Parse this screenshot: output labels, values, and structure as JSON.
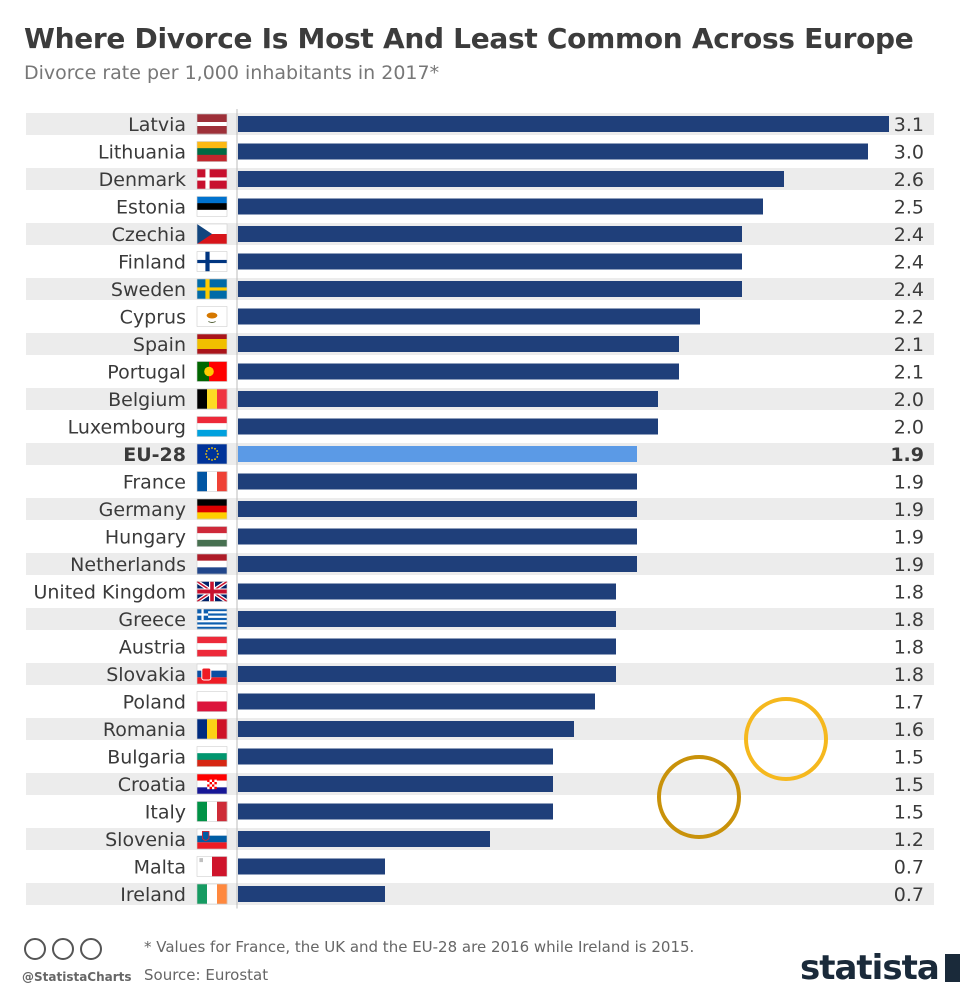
{
  "chart_data": {
    "type": "bar",
    "orientation": "horizontal",
    "title": "Where Divorce Is Most And Least Common Across Europe",
    "subtitle": "Divorce rate per 1,000 inhabitants in 2017*",
    "categories": [
      "Latvia",
      "Lithuania",
      "Denmark",
      "Estonia",
      "Czechia",
      "Finland",
      "Sweden",
      "Cyprus",
      "Spain",
      "Portugal",
      "Belgium",
      "Luxembourg",
      "EU-28",
      "France",
      "Germany",
      "Hungary",
      "Netherlands",
      "United Kingdom",
      "Greece",
      "Austria",
      "Slovakia",
      "Poland",
      "Romania",
      "Bulgaria",
      "Croatia",
      "Italy",
      "Slovenia",
      "Malta",
      "Ireland"
    ],
    "values": [
      3.1,
      3.0,
      2.6,
      2.5,
      2.4,
      2.4,
      2.4,
      2.2,
      2.1,
      2.1,
      2.0,
      2.0,
      1.9,
      1.9,
      1.9,
      1.9,
      1.9,
      1.8,
      1.8,
      1.8,
      1.8,
      1.7,
      1.6,
      1.5,
      1.5,
      1.5,
      1.2,
      0.7,
      0.7
    ],
    "value_labels": [
      "3.1",
      "3.0",
      "2.6",
      "2.5",
      "2.4",
      "2.4",
      "2.4",
      "2.2",
      "2.1",
      "2.1",
      "2.0",
      "2.0",
      "1.9",
      "1.9",
      "1.9",
      "1.9",
      "1.9",
      "1.8",
      "1.8",
      "1.8",
      "1.8",
      "1.7",
      "1.6",
      "1.5",
      "1.5",
      "1.5",
      "1.2",
      "0.7",
      "0.7"
    ],
    "highlight_category": "EU-28",
    "xlim": [
      0,
      3.1
    ],
    "bar_color": "#1f3f7a",
    "highlight_color": "#5b9ae6",
    "stripe_color": "#ececec",
    "grid": false,
    "legend": "none"
  },
  "flags": {
    "Latvia": {
      "type": "h",
      "colors": [
        "#9e3039",
        "#9e3039",
        "#ffffff",
        "#9e3039",
        "#9e3039"
      ]
    },
    "Lithuania": {
      "type": "h",
      "colors": [
        "#fdb913",
        "#006a44",
        "#c1272d"
      ]
    },
    "Denmark": {
      "type": "nordic",
      "bg": "#c8102e",
      "cross": "#ffffff"
    },
    "Estonia": {
      "type": "h",
      "colors": [
        "#0072ce",
        "#000000",
        "#ffffff"
      ]
    },
    "Czechia": {
      "type": "czech"
    },
    "Finland": {
      "type": "nordic",
      "bg": "#ffffff",
      "cross": "#003580"
    },
    "Sweden": {
      "type": "nordic",
      "bg": "#006aa7",
      "cross": "#fecc00"
    },
    "Cyprus": {
      "type": "cyprus"
    },
    "Spain": {
      "type": "h",
      "colors": [
        "#aa151b",
        "#f1bf00",
        "#f1bf00",
        "#aa151b"
      ]
    },
    "Portugal": {
      "type": "portugal"
    },
    "Belgium": {
      "type": "v",
      "colors": [
        "#000000",
        "#fdda24",
        "#ef3340"
      ]
    },
    "Luxembourg": {
      "type": "h",
      "colors": [
        "#ed2939",
        "#ffffff",
        "#00a1de"
      ]
    },
    "EU-28": {
      "type": "eu"
    },
    "France": {
      "type": "v",
      "colors": [
        "#0055a4",
        "#ffffff",
        "#ef4135"
      ]
    },
    "Germany": {
      "type": "h",
      "colors": [
        "#000000",
        "#dd0000",
        "#ffce00"
      ]
    },
    "Hungary": {
      "type": "h",
      "colors": [
        "#ce2939",
        "#ffffff",
        "#477050"
      ]
    },
    "Netherlands": {
      "type": "h",
      "colors": [
        "#ae1c28",
        "#ffffff",
        "#21468b"
      ]
    },
    "United Kingdom": {
      "type": "uk"
    },
    "Greece": {
      "type": "greece"
    },
    "Austria": {
      "type": "h",
      "colors": [
        "#ed2939",
        "#ffffff",
        "#ed2939"
      ]
    },
    "Slovakia": {
      "type": "slovakia"
    },
    "Poland": {
      "type": "h",
      "colors": [
        "#ffffff",
        "#dc143c"
      ]
    },
    "Romania": {
      "type": "v",
      "colors": [
        "#002b7f",
        "#fcd116",
        "#ce1126"
      ]
    },
    "Bulgaria": {
      "type": "h",
      "colors": [
        "#ffffff",
        "#00966e",
        "#d62612"
      ]
    },
    "Croatia": {
      "type": "croatia"
    },
    "Italy": {
      "type": "v",
      "colors": [
        "#009246",
        "#ffffff",
        "#ce2b37"
      ]
    },
    "Slovenia": {
      "type": "slovenia"
    },
    "Malta": {
      "type": "malta"
    },
    "Ireland": {
      "type": "v",
      "colors": [
        "#169b62",
        "#ffffff",
        "#ff883e"
      ]
    }
  },
  "footnote": "* Values for France, the UK and the EU-28 are 2016 while Ireland is 2015.",
  "source": "Source: Eurostat",
  "handle": "@StatistaCharts",
  "brand": "statista",
  "annotation_circle_colors": [
    "#f5b81e",
    "#c9920a"
  ]
}
